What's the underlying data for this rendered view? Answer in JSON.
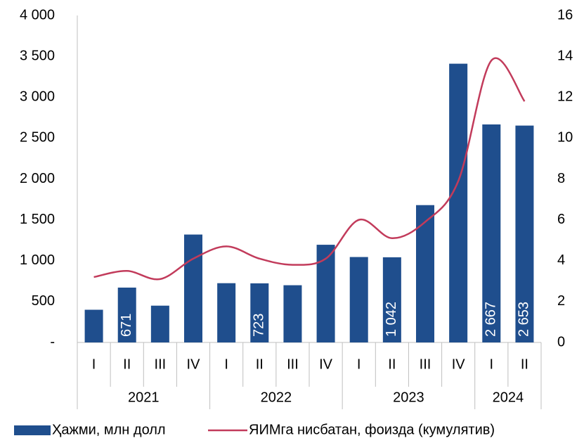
{
  "chart_data": {
    "type": "bar",
    "groups": [
      {
        "label": "2021",
        "categories": [
          "I",
          "II",
          "III",
          "IV"
        ]
      },
      {
        "label": "2022",
        "categories": [
          "I",
          "II",
          "III",
          "IV"
        ]
      },
      {
        "label": "2023",
        "categories": [
          "I",
          "II",
          "III",
          "IV"
        ]
      },
      {
        "label": "2024",
        "categories": [
          "I",
          "II"
        ]
      }
    ],
    "series": [
      {
        "name": "Ҳажми, млн долл",
        "type": "bar",
        "color": "#1f4e8d",
        "values": [
          400,
          671,
          450,
          1320,
          725,
          723,
          700,
          1195,
          1045,
          1042,
          1680,
          3410,
          2667,
          2653
        ],
        "value_labels": [
          null,
          "671",
          null,
          null,
          null,
          "723",
          null,
          null,
          null,
          "1 042",
          null,
          null,
          "2 667",
          "2 653"
        ]
      },
      {
        "name": "ЯИМга нисбатан, фоизда (кумулятив)",
        "type": "line",
        "axis": "y2",
        "color": "#c23b5b",
        "values": [
          3.2,
          3.5,
          3.1,
          4.1,
          4.7,
          4.1,
          3.8,
          4.1,
          6.0,
          5.1,
          5.9,
          7.9,
          13.8,
          11.8
        ]
      }
    ],
    "ylim": [
      0,
      4000
    ],
    "yticks": [
      {
        "value": 0,
        "label": "-"
      },
      500,
      {
        "value": 1000,
        "label": "1 000"
      },
      {
        "value": 1500,
        "label": "1 500"
      },
      {
        "value": 2000,
        "label": "2 000"
      },
      {
        "value": 2500,
        "label": "2 500"
      },
      {
        "value": 3000,
        "label": "3 000"
      },
      {
        "value": 3500,
        "label": "3 500"
      },
      {
        "value": 4000,
        "label": "4 000"
      }
    ],
    "y2lim": [
      0,
      16
    ],
    "y2ticks": [
      0,
      2,
      4,
      6,
      8,
      10,
      12,
      14,
      16
    ],
    "legend": "bottom"
  }
}
